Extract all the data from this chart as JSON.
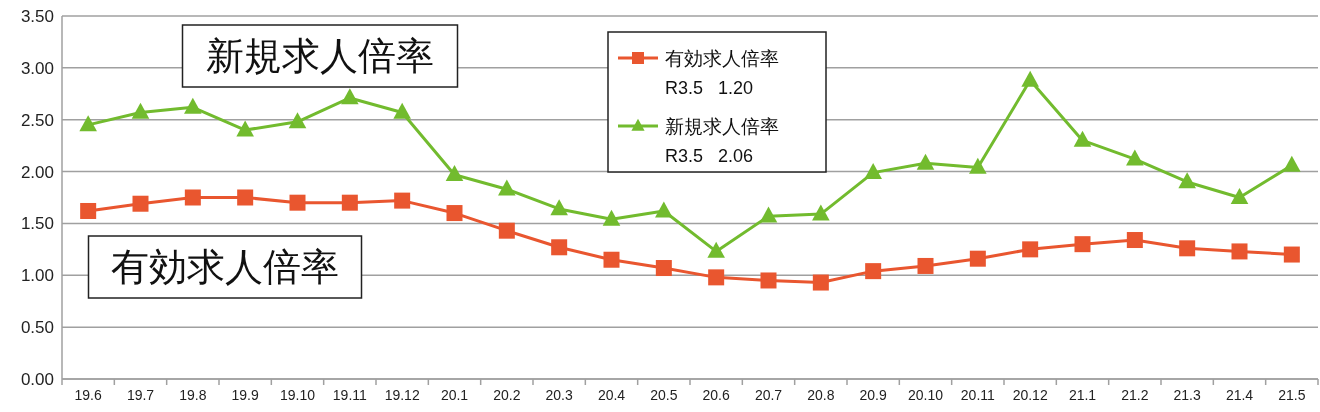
{
  "chart_data": {
    "type": "line",
    "categories": [
      "19.6",
      "19.7",
      "19.8",
      "19.9",
      "19.10",
      "19.11",
      "19.12",
      "20.1",
      "20.2",
      "20.3",
      "20.4",
      "20.5",
      "20.6",
      "20.7",
      "20.8",
      "20.9",
      "20.10",
      "20.11",
      "20.12",
      "21.1",
      "21.2",
      "21.3",
      "21.4",
      "21.5"
    ],
    "series": [
      {
        "name": "有効求人倍率",
        "color": "#e9562f",
        "marker": "square",
        "values": [
          1.62,
          1.69,
          1.75,
          1.75,
          1.7,
          1.7,
          1.72,
          1.6,
          1.43,
          1.27,
          1.15,
          1.07,
          0.98,
          0.95,
          0.93,
          1.04,
          1.09,
          1.16,
          1.25,
          1.3,
          1.34,
          1.26,
          1.23,
          1.2
        ]
      },
      {
        "name": "新規求人倍率",
        "color": "#72bb2e",
        "marker": "triangle",
        "values": [
          2.45,
          2.57,
          2.62,
          2.4,
          2.48,
          2.71,
          2.57,
          1.97,
          1.83,
          1.64,
          1.54,
          1.62,
          1.23,
          1.57,
          1.59,
          1.99,
          2.08,
          2.04,
          2.88,
          2.3,
          2.12,
          1.9,
          1.75,
          2.06
        ]
      }
    ],
    "ylim": [
      0,
      3.5
    ],
    "yticks": [
      {
        "value": 0,
        "label": "0.00"
      },
      {
        "value": 0.5,
        "label": "0.50"
      },
      {
        "value": 1,
        "label": "1.00"
      },
      {
        "value": 1.5,
        "label": "1.50"
      },
      {
        "value": 2,
        "label": "2.00"
      },
      {
        "value": 2.5,
        "label": "2.50"
      },
      {
        "value": 3,
        "label": "3.00"
      },
      {
        "value": 3.5,
        "label": "3.50"
      }
    ],
    "grid": "y",
    "legend": "top",
    "annotations": [
      "新規求人倍率",
      "有効求人倍率",
      "R3.5   1.20",
      "R3.5   2.06"
    ]
  }
}
